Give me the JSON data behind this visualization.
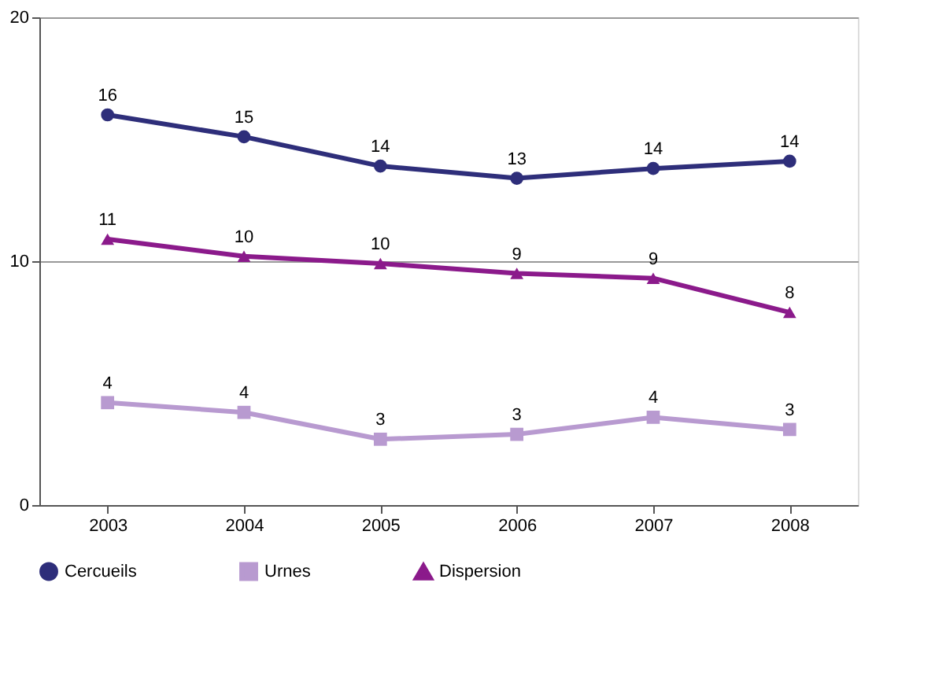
{
  "chart_data": {
    "type": "line",
    "categories": [
      "2003",
      "2004",
      "2005",
      "2006",
      "2007",
      "2008"
    ],
    "series": [
      {
        "name": "Cercueils",
        "color": "#2e2e7a",
        "marker": "circle",
        "values": [
          16.0,
          15.1,
          13.9,
          13.4,
          13.8,
          14.1
        ],
        "value_labels": [
          "16",
          "15",
          "14",
          "13",
          "14",
          "14"
        ]
      },
      {
        "name": "Urnes",
        "color": "#b89ad0",
        "marker": "square",
        "values": [
          4.2,
          3.8,
          2.7,
          2.9,
          3.6,
          3.1
        ],
        "value_labels": [
          "4",
          "4",
          "3",
          "3",
          "4",
          "3"
        ]
      },
      {
        "name": "Dispersion",
        "color": "#8b1a8b",
        "marker": "triangle",
        "values": [
          10.9,
          10.2,
          9.9,
          9.5,
          9.3,
          7.9
        ],
        "value_labels": [
          "11",
          "10",
          "10",
          "9",
          "9",
          "8"
        ]
      }
    ],
    "ylim": [
      0,
      20
    ],
    "yticks": [
      0,
      10,
      20
    ],
    "grid": "y",
    "legend": "bottom",
    "line_style": "solid"
  }
}
